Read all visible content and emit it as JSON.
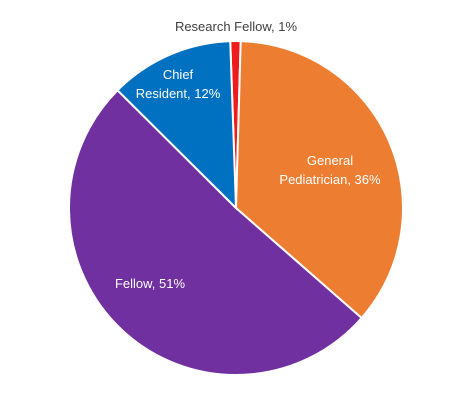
{
  "chart_data": {
    "type": "pie",
    "title": "",
    "legend": "none",
    "slices": [
      {
        "label": "Research Fellow, 1%",
        "category": "Research Fellow",
        "value": 1,
        "color": "#ee1c1c",
        "label_color": "#404040",
        "label_lines": [
          "Research Fellow, 1%"
        ]
      },
      {
        "label": "General Pediatrician, 36%",
        "category": "General Pediatrician",
        "value": 36,
        "color": "#ed7d31",
        "label_color": "#ffffff",
        "label_lines": [
          "General",
          "Pediatrician, 36%"
        ]
      },
      {
        "label": "Fellow, 51%",
        "category": "Fellow",
        "value": 51,
        "color": "#7030a0",
        "label_color": "#ffffff",
        "label_lines": [
          "Fellow, 51%"
        ]
      },
      {
        "label": "Chief Resident, 12%",
        "category": "Chief Resident",
        "value": 12,
        "color": "#0070c0",
        "label_color": "#ffffff",
        "label_lines": [
          "Chief",
          "Resident, 12%"
        ]
      }
    ]
  }
}
